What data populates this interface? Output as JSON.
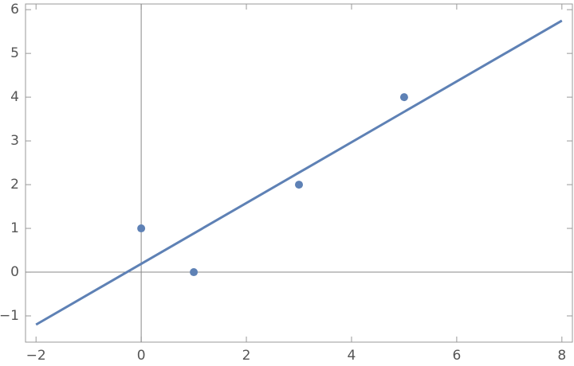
{
  "chart_data": {
    "type": "scatter",
    "series": [
      {
        "type": "line",
        "color": "#5e81b5",
        "x": [
          -2,
          8
        ],
        "values": [
          -1.2,
          5.75
        ]
      },
      {
        "type": "scatter",
        "color": "#5e81b5",
        "x": [
          0,
          1,
          3,
          5
        ],
        "values": [
          1,
          0,
          2,
          4
        ]
      }
    ],
    "xlim": [
      -2.2,
      8.2
    ],
    "ylim": [
      -1.6,
      6.13
    ],
    "xticks": [
      {
        "value": -2,
        "label": "−2"
      },
      0,
      2,
      4,
      6,
      8
    ],
    "yticks": [
      {
        "value": -1,
        "label": "−1"
      },
      0,
      1,
      2,
      3,
      4,
      5,
      6
    ],
    "grid": false
  }
}
